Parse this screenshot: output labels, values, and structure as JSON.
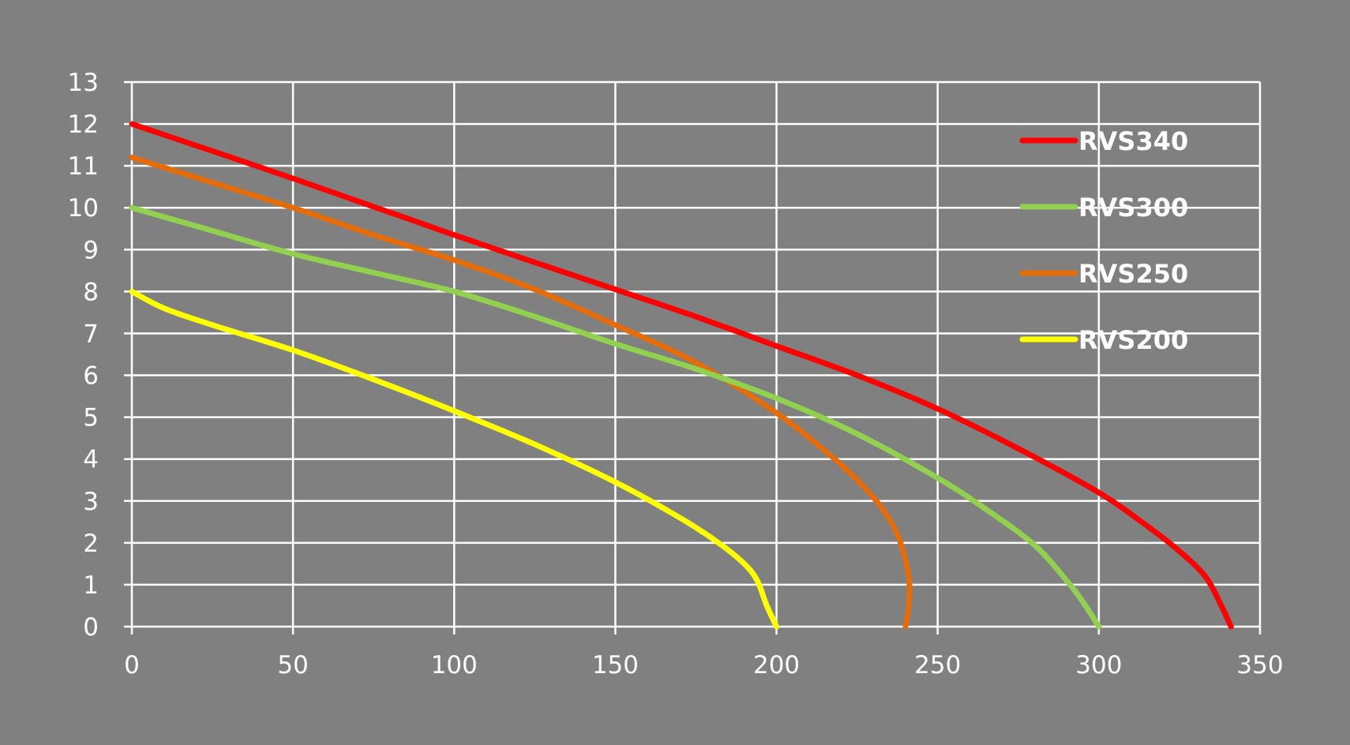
{
  "chart_data": {
    "type": "line",
    "title": "",
    "xlabel": "",
    "ylabel": "",
    "xlim": [
      0,
      350
    ],
    "ylim": [
      0,
      13
    ],
    "x_ticks": [
      "0",
      "50",
      "100",
      "150",
      "200",
      "250",
      "300",
      "350"
    ],
    "y_ticks": [
      "0",
      "1",
      "2",
      "3",
      "4",
      "5",
      "6",
      "7",
      "8",
      "9",
      "10",
      "11",
      "12",
      "13"
    ],
    "grid": true,
    "legend_position": "top-right",
    "background_color": "#808080",
    "grid_color": "#ffffff",
    "series": [
      {
        "name": "RVS340",
        "color": "#ff0000",
        "points": [
          [
            0,
            12
          ],
          [
            50,
            10.7
          ],
          [
            100,
            9.35
          ],
          [
            150,
            8.05
          ],
          [
            175,
            7.4
          ],
          [
            200,
            6.7
          ],
          [
            225,
            6.0
          ],
          [
            250,
            5.2
          ],
          [
            275,
            4.25
          ],
          [
            300,
            3.2
          ],
          [
            315,
            2.4
          ],
          [
            325,
            1.8
          ],
          [
            333,
            1.2
          ],
          [
            338,
            0.5
          ],
          [
            341,
            0
          ]
        ]
      },
      {
        "name": "RVS300",
        "color": "#92d050",
        "points": [
          [
            0,
            10
          ],
          [
            25,
            9.45
          ],
          [
            50,
            8.9
          ],
          [
            75,
            8.45
          ],
          [
            100,
            8
          ],
          [
            125,
            7.4
          ],
          [
            150,
            6.75
          ],
          [
            175,
            6.15
          ],
          [
            200,
            5.45
          ],
          [
            225,
            4.6
          ],
          [
            250,
            3.55
          ],
          [
            265,
            2.8
          ],
          [
            280,
            1.95
          ],
          [
            290,
            1.1
          ],
          [
            295,
            0.6
          ],
          [
            300,
            0
          ]
        ]
      },
      {
        "name": "RVS250",
        "color": "#e46c0a",
        "points": [
          [
            0,
            11.2
          ],
          [
            25,
            10.6
          ],
          [
            50,
            10
          ],
          [
            75,
            9.35
          ],
          [
            100,
            8.75
          ],
          [
            125,
            8.05
          ],
          [
            150,
            7.2
          ],
          [
            175,
            6.3
          ],
          [
            200,
            5.1
          ],
          [
            215,
            4.2
          ],
          [
            225,
            3.5
          ],
          [
            233,
            2.8
          ],
          [
            238,
            2.1
          ],
          [
            241,
            1.2
          ],
          [
            241,
            0.5
          ],
          [
            240,
            0
          ]
        ]
      },
      {
        "name": "RVS200",
        "color": "#ffff00",
        "points": [
          [
            0,
            8
          ],
          [
            10,
            7.6
          ],
          [
            25,
            7.2
          ],
          [
            50,
            6.6
          ],
          [
            75,
            5.9
          ],
          [
            100,
            5.15
          ],
          [
            125,
            4.35
          ],
          [
            150,
            3.45
          ],
          [
            170,
            2.6
          ],
          [
            182,
            2.0
          ],
          [
            190,
            1.5
          ],
          [
            194,
            1.1
          ],
          [
            197,
            0.5
          ],
          [
            200,
            0
          ]
        ]
      }
    ]
  }
}
